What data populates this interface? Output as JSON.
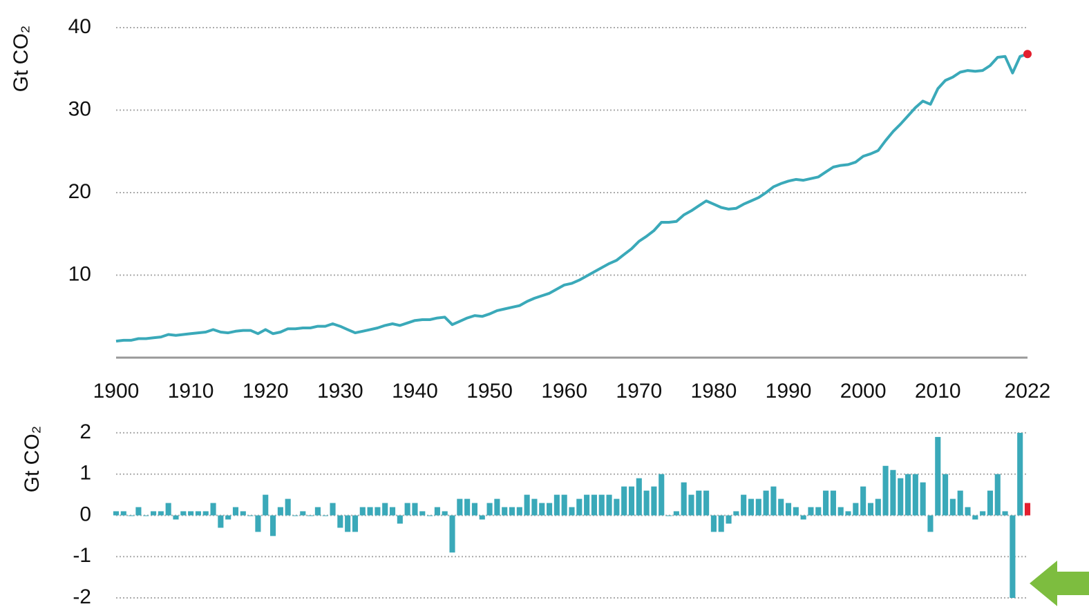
{
  "chart_data": [
    {
      "type": "line",
      "y_label": "Gt CO₂",
      "x": [
        1900,
        1901,
        1902,
        1903,
        1904,
        1905,
        1906,
        1907,
        1908,
        1909,
        1910,
        1911,
        1912,
        1913,
        1914,
        1915,
        1916,
        1917,
        1918,
        1919,
        1920,
        1921,
        1922,
        1923,
        1924,
        1925,
        1926,
        1927,
        1928,
        1929,
        1930,
        1931,
        1932,
        1933,
        1934,
        1935,
        1936,
        1937,
        1938,
        1939,
        1940,
        1941,
        1942,
        1943,
        1944,
        1945,
        1946,
        1947,
        1948,
        1949,
        1950,
        1951,
        1952,
        1953,
        1954,
        1955,
        1956,
        1957,
        1958,
        1959,
        1960,
        1961,
        1962,
        1963,
        1964,
        1965,
        1966,
        1967,
        1968,
        1969,
        1970,
        1971,
        1972,
        1973,
        1974,
        1975,
        1976,
        1977,
        1978,
        1979,
        1980,
        1981,
        1982,
        1983,
        1984,
        1985,
        1986,
        1987,
        1988,
        1989,
        1990,
        1991,
        1992,
        1993,
        1994,
        1995,
        1996,
        1997,
        1998,
        1999,
        2000,
        2001,
        2002,
        2003,
        2004,
        2005,
        2006,
        2007,
        2008,
        2009,
        2010,
        2011,
        2012,
        2013,
        2014,
        2015,
        2016,
        2017,
        2018,
        2019,
        2020,
        2021,
        2022
      ],
      "values": [
        2.0,
        2.1,
        2.1,
        2.3,
        2.3,
        2.4,
        2.5,
        2.8,
        2.7,
        2.8,
        2.9,
        3.0,
        3.1,
        3.4,
        3.1,
        3.0,
        3.2,
        3.3,
        3.3,
        2.9,
        3.4,
        2.9,
        3.1,
        3.5,
        3.5,
        3.6,
        3.6,
        3.8,
        3.8,
        4.1,
        3.8,
        3.4,
        3.0,
        3.2,
        3.4,
        3.6,
        3.9,
        4.1,
        3.9,
        4.2,
        4.5,
        4.6,
        4.6,
        4.8,
        4.9,
        4.0,
        4.4,
        4.8,
        5.1,
        5.0,
        5.3,
        5.7,
        5.9,
        6.1,
        6.3,
        6.8,
        7.2,
        7.5,
        7.8,
        8.3,
        8.8,
        9.0,
        9.4,
        9.9,
        10.4,
        10.9,
        11.4,
        11.8,
        12.5,
        13.2,
        14.1,
        14.7,
        15.4,
        16.4,
        16.4,
        16.5,
        17.3,
        17.8,
        18.4,
        19.0,
        18.6,
        18.2,
        18.0,
        18.1,
        18.6,
        19.0,
        19.4,
        20.0,
        20.7,
        21.1,
        21.4,
        21.6,
        21.5,
        21.7,
        21.9,
        22.5,
        23.1,
        23.3,
        23.4,
        23.7,
        24.4,
        24.7,
        25.1,
        26.3,
        27.4,
        28.3,
        29.3,
        30.3,
        31.1,
        30.7,
        32.6,
        33.6,
        34.0,
        34.6,
        34.8,
        34.7,
        34.8,
        35.4,
        36.4,
        36.5,
        34.5,
        36.5,
        36.8
      ],
      "color": "#3aa9b9",
      "highlight_last_color": "#e3202f",
      "xlim": [
        1900,
        2022
      ],
      "xticks": [
        1900,
        1910,
        1920,
        1930,
        1940,
        1950,
        1960,
        1970,
        1980,
        1990,
        2000,
        2010,
        2022
      ],
      "ylim": [
        0,
        40
      ],
      "yticks": [
        10,
        20,
        30,
        40
      ],
      "grid": true
    },
    {
      "type": "bar",
      "y_label": "Gt CO₂",
      "x": [
        1900,
        1901,
        1902,
        1903,
        1904,
        1905,
        1906,
        1907,
        1908,
        1909,
        1910,
        1911,
        1912,
        1913,
        1914,
        1915,
        1916,
        1917,
        1918,
        1919,
        1920,
        1921,
        1922,
        1923,
        1924,
        1925,
        1926,
        1927,
        1928,
        1929,
        1930,
        1931,
        1932,
        1933,
        1934,
        1935,
        1936,
        1937,
        1938,
        1939,
        1940,
        1941,
        1942,
        1943,
        1944,
        1945,
        1946,
        1947,
        1948,
        1949,
        1950,
        1951,
        1952,
        1953,
        1954,
        1955,
        1956,
        1957,
        1958,
        1959,
        1960,
        1961,
        1962,
        1963,
        1964,
        1965,
        1966,
        1967,
        1968,
        1969,
        1970,
        1971,
        1972,
        1973,
        1974,
        1975,
        1976,
        1977,
        1978,
        1979,
        1980,
        1981,
        1982,
        1983,
        1984,
        1985,
        1986,
        1987,
        1988,
        1989,
        1990,
        1991,
        1992,
        1993,
        1994,
        1995,
        1996,
        1997,
        1998,
        1999,
        2000,
        2001,
        2002,
        2003,
        2004,
        2005,
        2006,
        2007,
        2008,
        2009,
        2010,
        2011,
        2012,
        2013,
        2014,
        2015,
        2016,
        2017,
        2018,
        2019,
        2020,
        2021,
        2022
      ],
      "values": [
        0.1,
        0.1,
        0.0,
        0.2,
        0.0,
        0.1,
        0.1,
        0.3,
        -0.1,
        0.1,
        0.1,
        0.1,
        0.1,
        0.3,
        -0.3,
        -0.1,
        0.2,
        0.1,
        0.0,
        -0.4,
        0.5,
        -0.5,
        0.2,
        0.4,
        0.0,
        0.1,
        0.0,
        0.2,
        0.0,
        0.3,
        -0.3,
        -0.4,
        -0.4,
        0.2,
        0.2,
        0.2,
        0.3,
        0.2,
        -0.2,
        0.3,
        0.3,
        0.1,
        0.0,
        0.2,
        0.1,
        -0.9,
        0.4,
        0.4,
        0.3,
        -0.1,
        0.3,
        0.4,
        0.2,
        0.2,
        0.2,
        0.5,
        0.4,
        0.3,
        0.3,
        0.5,
        0.5,
        0.2,
        0.4,
        0.5,
        0.5,
        0.5,
        0.5,
        0.4,
        0.7,
        0.7,
        0.9,
        0.6,
        0.7,
        1.0,
        0.0,
        0.1,
        0.8,
        0.5,
        0.6,
        0.6,
        -0.4,
        -0.4,
        -0.2,
        0.1,
        0.5,
        0.4,
        0.4,
        0.6,
        0.7,
        0.4,
        0.3,
        0.2,
        -0.1,
        0.2,
        0.2,
        0.6,
        0.6,
        0.2,
        0.1,
        0.3,
        0.7,
        0.3,
        0.4,
        1.2,
        1.1,
        0.9,
        1.0,
        1.0,
        0.8,
        -0.4,
        1.9,
        1.0,
        0.4,
        0.6,
        0.2,
        -0.1,
        0.1,
        0.6,
        1.0,
        0.1,
        -2.0,
        2.0,
        0.3
      ],
      "color": "#3aa9b9",
      "highlight_last_color": "#e3202f",
      "xlim": [
        1900,
        2022
      ],
      "ylim": [
        -2.25,
        2.3
      ],
      "yticks": [
        -2,
        -1,
        0,
        1,
        2
      ],
      "grid": true
    }
  ]
}
